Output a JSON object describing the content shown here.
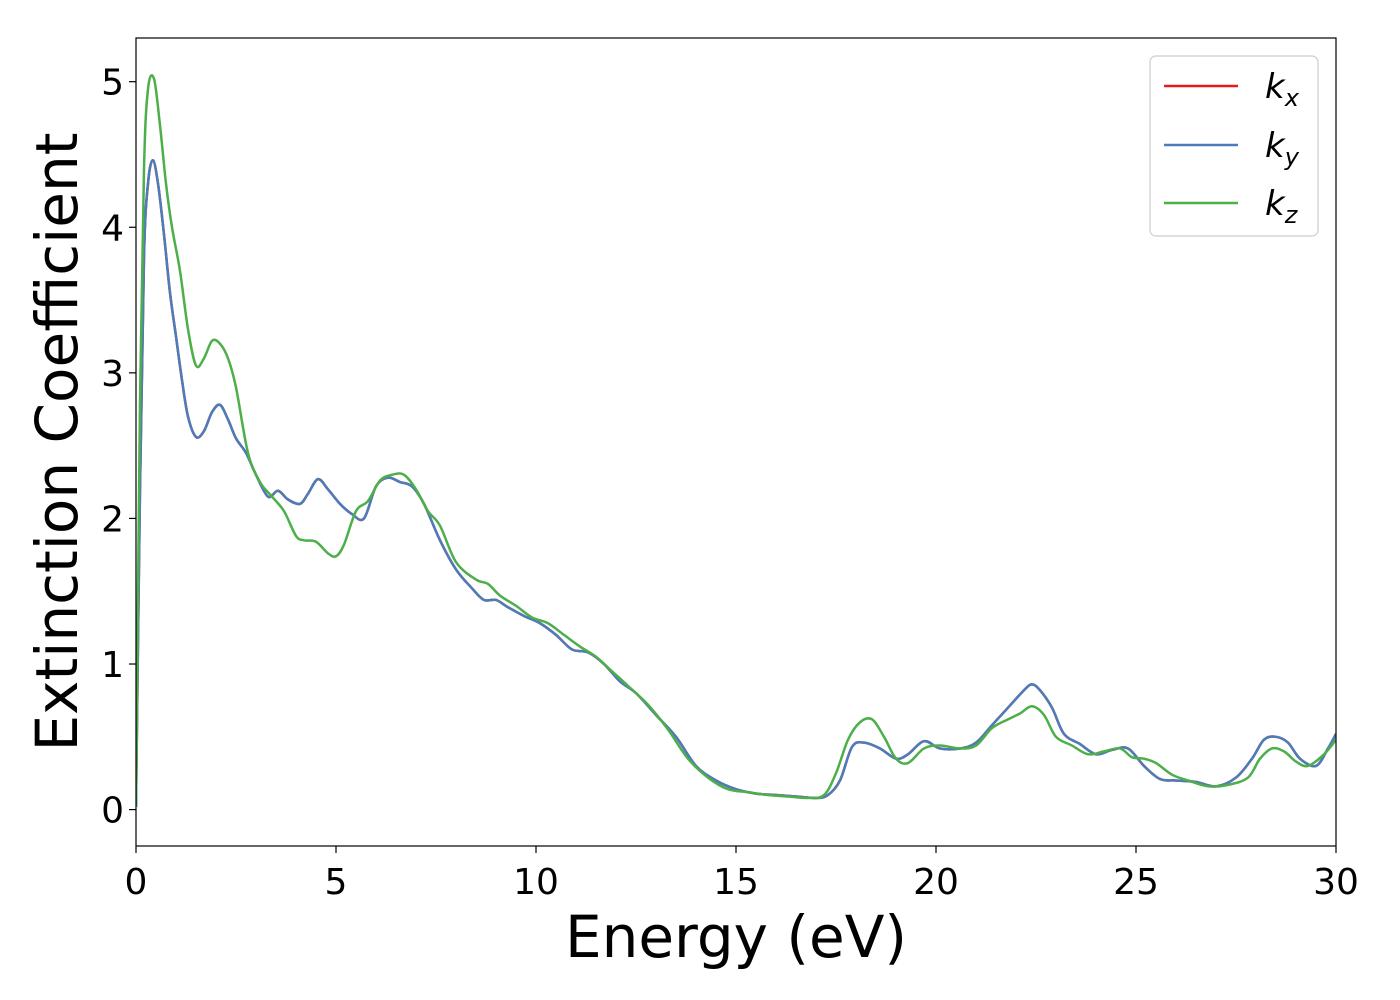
{
  "chart_data": {
    "type": "line",
    "title": "",
    "xlabel": "Energy (eV)",
    "ylabel": "Extinction Coefficient",
    "xlim": [
      0,
      30
    ],
    "ylim": [
      -0.25,
      5.3
    ],
    "xticks": [
      0,
      5,
      10,
      15,
      20,
      25,
      30
    ],
    "yticks": [
      0,
      1,
      2,
      3,
      4,
      5
    ],
    "grid": false,
    "legend_position": "top-right",
    "series": [
      {
        "name": "k_x",
        "legend_main": "k",
        "legend_sub": "x",
        "color": "#e41a1c",
        "x": [
          0,
          0.1,
          0.2,
          0.3,
          0.42,
          0.55,
          0.7,
          0.85,
          1.0,
          1.15,
          1.3,
          1.5,
          1.7,
          1.9,
          2.1,
          2.3,
          2.5,
          2.75,
          3.0,
          3.3,
          3.55,
          3.8,
          4.1,
          4.3,
          4.55,
          4.8,
          5.1,
          5.4,
          5.7,
          6.0,
          6.3,
          6.6,
          6.9,
          7.2,
          7.6,
          8.0,
          8.4,
          8.7,
          9.0,
          9.3,
          9.7,
          10.1,
          10.5,
          10.9,
          11.3,
          11.7,
          12.1,
          12.5,
          13.0,
          13.5,
          14.0,
          14.5,
          15.0,
          15.5,
          16.0,
          16.5,
          17.0,
          17.3,
          17.6,
          17.9,
          18.2,
          18.6,
          19.0,
          19.3,
          19.7,
          20.1,
          20.6,
          21.0,
          21.4,
          21.8,
          22.2,
          22.4,
          22.6,
          22.9,
          23.2,
          23.6,
          24.0,
          24.4,
          24.8,
          25.2,
          25.6,
          26.0,
          26.5,
          27.0,
          27.5,
          27.9,
          28.2,
          28.5,
          28.8,
          29.1,
          29.5,
          29.8,
          30.0
        ],
        "y": [
          0.02,
          2.2,
          3.8,
          4.3,
          4.46,
          4.3,
          3.95,
          3.55,
          3.25,
          2.95,
          2.7,
          2.56,
          2.6,
          2.73,
          2.78,
          2.68,
          2.55,
          2.45,
          2.3,
          2.15,
          2.19,
          2.13,
          2.1,
          2.17,
          2.27,
          2.2,
          2.1,
          2.03,
          2.0,
          2.22,
          2.28,
          2.25,
          2.22,
          2.1,
          1.85,
          1.65,
          1.52,
          1.44,
          1.44,
          1.39,
          1.33,
          1.28,
          1.2,
          1.1,
          1.08,
          1.0,
          0.88,
          0.8,
          0.65,
          0.5,
          0.3,
          0.2,
          0.14,
          0.11,
          0.1,
          0.09,
          0.08,
          0.1,
          0.2,
          0.43,
          0.46,
          0.42,
          0.35,
          0.38,
          0.47,
          0.42,
          0.42,
          0.46,
          0.58,
          0.7,
          0.82,
          0.86,
          0.82,
          0.7,
          0.52,
          0.45,
          0.38,
          0.41,
          0.42,
          0.3,
          0.21,
          0.2,
          0.19,
          0.16,
          0.22,
          0.35,
          0.48,
          0.5,
          0.46,
          0.35,
          0.3,
          0.42,
          0.52
        ]
      },
      {
        "name": "k_y",
        "legend_main": "k",
        "legend_sub": "y",
        "color": "#4a7dba",
        "x": [
          0,
          0.1,
          0.2,
          0.3,
          0.42,
          0.55,
          0.7,
          0.85,
          1.0,
          1.15,
          1.3,
          1.5,
          1.7,
          1.9,
          2.1,
          2.3,
          2.5,
          2.75,
          3.0,
          3.3,
          3.55,
          3.8,
          4.1,
          4.3,
          4.55,
          4.8,
          5.1,
          5.4,
          5.7,
          6.0,
          6.3,
          6.6,
          6.9,
          7.2,
          7.6,
          8.0,
          8.4,
          8.7,
          9.0,
          9.3,
          9.7,
          10.1,
          10.5,
          10.9,
          11.3,
          11.7,
          12.1,
          12.5,
          13.0,
          13.5,
          14.0,
          14.5,
          15.0,
          15.5,
          16.0,
          16.5,
          17.0,
          17.3,
          17.6,
          17.9,
          18.2,
          18.6,
          19.0,
          19.3,
          19.7,
          20.1,
          20.6,
          21.0,
          21.4,
          21.8,
          22.2,
          22.4,
          22.6,
          22.9,
          23.2,
          23.6,
          24.0,
          24.4,
          24.8,
          25.2,
          25.6,
          26.0,
          26.5,
          27.0,
          27.5,
          27.9,
          28.2,
          28.5,
          28.8,
          29.1,
          29.5,
          29.8,
          30.0
        ],
        "y": [
          0.02,
          2.2,
          3.8,
          4.3,
          4.46,
          4.3,
          3.95,
          3.55,
          3.25,
          2.95,
          2.7,
          2.56,
          2.6,
          2.73,
          2.78,
          2.68,
          2.55,
          2.45,
          2.3,
          2.15,
          2.19,
          2.13,
          2.1,
          2.17,
          2.27,
          2.2,
          2.1,
          2.03,
          2.0,
          2.22,
          2.28,
          2.25,
          2.22,
          2.1,
          1.85,
          1.65,
          1.52,
          1.44,
          1.44,
          1.39,
          1.33,
          1.28,
          1.2,
          1.1,
          1.08,
          1.0,
          0.88,
          0.8,
          0.65,
          0.5,
          0.3,
          0.2,
          0.14,
          0.11,
          0.1,
          0.09,
          0.08,
          0.1,
          0.2,
          0.43,
          0.46,
          0.42,
          0.35,
          0.38,
          0.47,
          0.42,
          0.42,
          0.46,
          0.58,
          0.7,
          0.82,
          0.86,
          0.82,
          0.7,
          0.52,
          0.45,
          0.38,
          0.41,
          0.42,
          0.3,
          0.21,
          0.2,
          0.19,
          0.16,
          0.22,
          0.35,
          0.48,
          0.5,
          0.46,
          0.35,
          0.3,
          0.42,
          0.52
        ]
      },
      {
        "name": "k_z",
        "legend_main": "k",
        "legend_sub": "z",
        "color": "#4daf4a",
        "x": [
          0,
          0.1,
          0.2,
          0.3,
          0.45,
          0.6,
          0.75,
          0.9,
          1.1,
          1.3,
          1.5,
          1.7,
          1.9,
          2.1,
          2.3,
          2.5,
          2.8,
          3.1,
          3.4,
          3.7,
          4.0,
          4.2,
          4.5,
          4.8,
          5.0,
          5.2,
          5.5,
          5.8,
          6.1,
          6.4,
          6.7,
          7.0,
          7.3,
          7.6,
          8.0,
          8.5,
          8.8,
          9.1,
          9.5,
          9.9,
          10.3,
          10.7,
          11.1,
          11.5,
          11.9,
          12.3,
          12.8,
          13.3,
          13.8,
          14.3,
          14.8,
          15.3,
          15.8,
          16.3,
          16.8,
          17.2,
          17.5,
          17.8,
          18.1,
          18.4,
          18.7,
          19.0,
          19.3,
          19.7,
          20.1,
          20.6,
          21.0,
          21.4,
          21.8,
          22.1,
          22.4,
          22.7,
          23.0,
          23.4,
          23.8,
          24.2,
          24.6,
          24.9,
          25.2,
          25.5,
          25.9,
          26.3,
          26.8,
          27.3,
          27.8,
          28.1,
          28.4,
          28.7,
          29.0,
          29.3,
          29.7,
          30.0
        ],
        "y": [
          0.02,
          2.8,
          4.4,
          4.95,
          5.02,
          4.7,
          4.3,
          4.0,
          3.7,
          3.3,
          3.05,
          3.1,
          3.22,
          3.2,
          3.1,
          2.9,
          2.45,
          2.25,
          2.15,
          2.05,
          1.88,
          1.85,
          1.84,
          1.76,
          1.74,
          1.82,
          2.05,
          2.12,
          2.26,
          2.3,
          2.3,
          2.2,
          2.05,
          1.95,
          1.7,
          1.58,
          1.55,
          1.47,
          1.4,
          1.32,
          1.28,
          1.2,
          1.12,
          1.05,
          0.95,
          0.85,
          0.72,
          0.55,
          0.35,
          0.22,
          0.14,
          0.12,
          0.1,
          0.09,
          0.08,
          0.1,
          0.25,
          0.48,
          0.6,
          0.62,
          0.5,
          0.35,
          0.32,
          0.42,
          0.44,
          0.42,
          0.44,
          0.56,
          0.62,
          0.66,
          0.71,
          0.65,
          0.5,
          0.44,
          0.38,
          0.4,
          0.42,
          0.36,
          0.35,
          0.32,
          0.24,
          0.2,
          0.16,
          0.17,
          0.22,
          0.35,
          0.42,
          0.4,
          0.33,
          0.3,
          0.38,
          0.48
        ]
      }
    ]
  }
}
